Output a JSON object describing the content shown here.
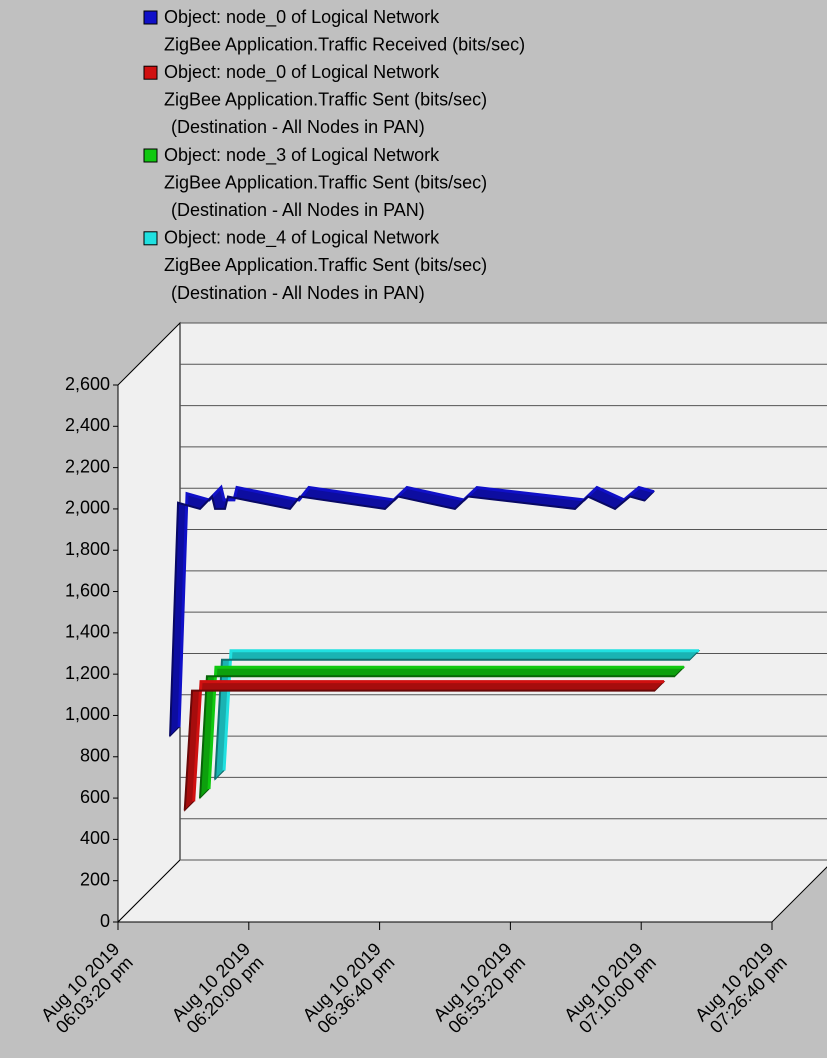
{
  "chart_data": {
    "type": "line3d",
    "xlim": [
      0,
      5000
    ],
    "xticks": [
      {
        "value": 0,
        "label": [
          "Aug 10 2019",
          "06:03:20 pm"
        ]
      },
      {
        "value": 1000,
        "label": [
          "Aug 10 2019",
          "06:20:00 pm"
        ]
      },
      {
        "value": 2000,
        "label": [
          "Aug 10 2019",
          "06:36:40 pm"
        ]
      },
      {
        "value": 3000,
        "label": [
          "Aug 10 2019",
          "06:53:20 pm"
        ]
      },
      {
        "value": 4000,
        "label": [
          "Aug 10 2019",
          "07:10:00 pm"
        ]
      },
      {
        "value": 5000,
        "label": [
          "Aug 10 2019",
          "07:26:40 pm"
        ]
      }
    ],
    "ylim": [
      0,
      2600
    ],
    "yticks": [
      0,
      200,
      400,
      600,
      800,
      {
        "value": 1000,
        "label": "1,000"
      },
      {
        "value": 1200,
        "label": "1,200"
      },
      {
        "value": 1400,
        "label": "1,400"
      },
      {
        "value": 1600,
        "label": "1,600"
      },
      {
        "value": 1800,
        "label": "1,800"
      },
      {
        "value": 2000,
        "label": "2,000"
      },
      {
        "value": 2200,
        "label": "2,200"
      },
      {
        "value": 2400,
        "label": "2,400"
      },
      {
        "value": 2600,
        "label": "2,600"
      }
    ],
    "grid": true,
    "series": [
      {
        "name": [
          "Object: node_0 of Logical Network",
          "ZigBee Application.Traffic Received (bits/sec)"
        ],
        "color": "#1010c8",
        "x": [
          398,
          459,
          627,
          719,
          742,
          818,
          841,
          1315,
          1391,
          2041,
          2141,
          2576,
          2676,
          3494,
          3593,
          3800,
          3914,
          4029
        ],
        "values": [
          900,
          2030,
          2000,
          2060,
          2000,
          2000,
          2060,
          2000,
          2060,
          2000,
          2060,
          2000,
          2060,
          2000,
          2060,
          2000,
          2060,
          2040
        ]
      },
      {
        "name": [
          "Object: node_0 of Logical Network",
          "ZigBee Application.Traffic Sent (bits/sec)",
          "(Destination - All Nodes in PAN)"
        ],
        "color": "#d01010",
        "x": [
          510,
          566,
          4106
        ],
        "values": [
          540,
          1120,
          1120
        ]
      },
      {
        "name": [
          "Object: node_3 of Logical Network",
          "ZigBee Application.Traffic Sent (bits/sec)",
          "(Destination - All Nodes in PAN)"
        ],
        "color": "#10c810",
        "x": [
          627,
          680,
          4258
        ],
        "values": [
          600,
          1190,
          1190
        ]
      },
      {
        "name": [
          "Object: node_4 of Logical Network",
          "ZigBee Application.Traffic Sent (bits/sec)",
          "(Destination - All Nodes in PAN)"
        ],
        "color": "#20e0e0",
        "x": [
          742,
          795,
          4373
        ],
        "values": [
          690,
          1270,
          1270
        ]
      }
    ]
  }
}
